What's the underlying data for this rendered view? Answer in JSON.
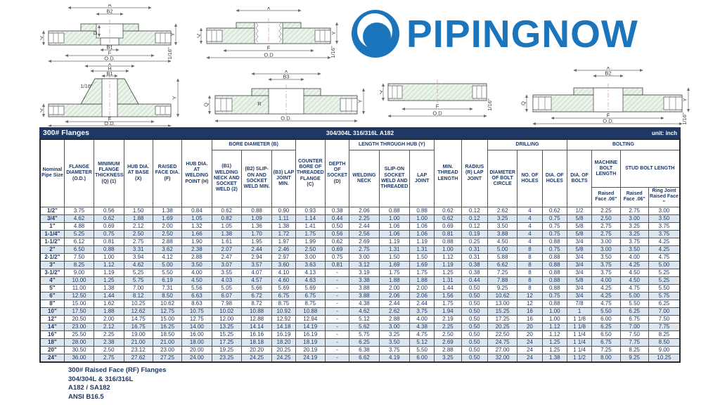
{
  "logo": {
    "text": "PIPINGNOW",
    "color": "#1b75bc"
  },
  "colors": {
    "accent_blue": "#1b75bc",
    "title_bar_bg": "#1f3864",
    "row_stripe": "#dce6f1",
    "text_navy": "#1f3864"
  },
  "drawings": [
    {
      "name": "socket-weld-flange",
      "labels": [
        "A",
        "B2",
        "D",
        "B1",
        "F",
        "O.D.",
        "Q",
        "Y",
        "1/16\""
      ]
    },
    {
      "name": "threaded-flange",
      "labels": [
        "X",
        "F",
        "O.D",
        "Q",
        "Y",
        "1/16\""
      ]
    },
    {
      "name": "welding-neck-flange",
      "labels": [
        "X",
        "H",
        "B1",
        "1/16\"",
        "F",
        "O.D.",
        "Q",
        "Y"
      ]
    },
    {
      "name": "lap-joint-flange",
      "labels": [
        "X",
        "B3",
        "R",
        "O.D.",
        "Q",
        "Y"
      ]
    },
    {
      "name": "blind-flange",
      "labels": [
        "Q",
        "F",
        "O.D",
        "1/16\""
      ]
    },
    {
      "name": "slip-on-flange",
      "labels": [
        "X",
        "B2",
        "F",
        "O.D.",
        "Q",
        "Y",
        "1/16\""
      ]
    }
  ],
  "table": {
    "title": "300# Flanges",
    "subtitle": "304/304L 316/316L A182",
    "unit": "unit: inch",
    "headers": {
      "nps": "Nominal Pipe Size",
      "od": "FLANGE DIAMETER (O.D.)",
      "q": "MINIMUM FLANGE THICKNESS (Q) (1)",
      "x": "HUB DIA. AT BASE (X)",
      "f": "RAISED FACE DIA. (F)",
      "h": "HUB DIA. AT WELDING POINT (H)",
      "bore_group": "BORE DIAMETER (B)",
      "b1": "(B1) WELDING NECK AND SOCKET WELD (2)",
      "b2": "(B2) SLIP-ON AND SOCKET WELD MIN.",
      "b3": "(B3) LAP JOINT MIN.",
      "c": "COUNTER BORE OF THREADED FLANGE (C)",
      "d": "DEPTH OF SOCKET (D)",
      "hub_group": "LENGTH THROUGH HUB (Y)",
      "y_wn": "WELDING NECK",
      "y_so": "SLIP-ON SOCKET WELD AND THREADED",
      "y_lj": "LAP JOINT",
      "min_thread": "MIN. THREAD LENGTH",
      "radius": "RADIUS (R) LAP JOINT",
      "drilling_group": "DRILLING",
      "bolt_circle": "DIAMETER OF BOLT CIRCLE",
      "num_holes": "NO. OF HOLES",
      "dia_holes": "DIA. OF HOLES",
      "bolting_group": "BOLTING",
      "dia_bolts": "DIA. OF BOLTS",
      "machine_bolt": "MACHINE BOLT LENGTH",
      "stud_bolt": "STUD BOLT LENGTH",
      "mb_raised_face": "Raised Face .06\"",
      "sb_raised_face": "Raised Face .06\"",
      "sb_ring_joint": "Ring Joint Raised Face \""
    },
    "rows": [
      [
        "1/2\"",
        "3.75",
        "0.56",
        "1.50",
        "1.38",
        "0.84",
        "0.62",
        "0.88",
        "0.90",
        "0.93",
        "0.38",
        "2.06",
        "0.88",
        "0.88",
        "0.62",
        "0.12",
        "2.62",
        "4",
        "0.62",
        "1/2",
        "2.25",
        "2.75",
        "3.00"
      ],
      [
        "3/4\"",
        "4.62",
        "0.62",
        "1.88",
        "1.69",
        "1.05",
        "0.82",
        "1.09",
        "1.11",
        "1.14",
        "0.44",
        "2.25",
        "1.00",
        "1.00",
        "0.62",
        "0.12",
        "3.25",
        "4",
        "0.75",
        "5/8",
        "2.50",
        "3.00",
        "3.50"
      ],
      [
        "1\"",
        "4.88",
        "0.69",
        "2.12",
        "2.00",
        "1.32",
        "1.05",
        "1.36",
        "1.38",
        "1.41",
        "0.50",
        "2.44",
        "1.06",
        "1.06",
        "0.69",
        "0.12",
        "3.50",
        "4",
        "0.75",
        "5/8",
        "2.75",
        "3.25",
        "3.75"
      ],
      [
        "1-1/4\"",
        "5.25",
        "0.75",
        "2.50",
        "2.50",
        "1.66",
        "1.38",
        "1.70",
        "1.72",
        "1.75",
        "0.56",
        "2.56",
        "1.06",
        "1.06",
        "0.81",
        "0.19",
        "3.88",
        "4",
        "0.75",
        "5/8",
        "2.75",
        "3.25",
        "3.75"
      ],
      [
        "1-1/2\"",
        "6.12",
        "0.81",
        "2.75",
        "2.88",
        "1.90",
        "1.61",
        "1.95",
        "1.97",
        "1.99",
        "0.62",
        "2.69",
        "1.19",
        "1.19",
        "0.88",
        "0.25",
        "4.50",
        "4",
        "0.88",
        "3/4",
        "3.00",
        "3.75",
        "4.25"
      ],
      [
        "2\"",
        "6.50",
        "0.88",
        "3.31",
        "3.62",
        "2.38",
        "2.07",
        "2.44",
        "2.46",
        "2.50",
        "0.69",
        "2.75",
        "1.31",
        "1.31",
        "1.00",
        "0.31",
        "5.00",
        "8",
        "0.75",
        "5/8",
        "3.00",
        "3.50",
        "4.25"
      ],
      [
        "2-1/2\"",
        "7.50",
        "1.00",
        "3.94",
        "4.12",
        "2.88",
        "2.47",
        "2.94",
        "2.97",
        "3.00",
        "0.75",
        "3.00",
        "1.50",
        "1.50",
        "1.12",
        "0.31",
        "5.88",
        "8",
        "0.88",
        "3/4",
        "3.50",
        "4.00",
        "4.75"
      ],
      [
        "3\"",
        "8.25",
        "1.12",
        "4.62",
        "5.00",
        "3.50",
        "3.07",
        "3.57",
        "3.60",
        "3.63",
        "0.81",
        "3.12",
        "1.69",
        "1.69",
        "1.19",
        "0.38",
        "6.62",
        "8",
        "0.88",
        "3/4",
        "3.75",
        "4.25",
        "5.00"
      ],
      [
        "3-1/2\"",
        "9.00",
        "1.19",
        "5.25",
        "5.50",
        "4.00",
        "3.55",
        "4.07",
        "4.10",
        "4.13",
        "-",
        "3.19",
        "1.75",
        "1.75",
        "1.25",
        "0.38",
        "7.25",
        "8",
        "0.88",
        "3/4",
        "3.75",
        "4.50",
        "5.25"
      ],
      [
        "4\"",
        "10.00",
        "1.25",
        "5.75",
        "6.19",
        "4.50",
        "4.03",
        "4.57",
        "4.60",
        "4.63",
        "-",
        "3.38",
        "1.88",
        "1.88",
        "1.31",
        "0.44",
        "7.88",
        "8",
        "0.88",
        "5/8",
        "4.00",
        "4.50",
        "5.25"
      ],
      [
        "5\"",
        "11.00",
        "1.38",
        "7.00",
        "7.31",
        "5.56",
        "5.05",
        "5.66",
        "5.69",
        "5.69",
        "-",
        "3.88",
        "2.00",
        "2.00",
        "1.44",
        "0.50",
        "9.25",
        "8",
        "0.88",
        "3/4",
        "4.25",
        "4.75",
        "5.50"
      ],
      [
        "6\"",
        "12.50",
        "1.44",
        "8.12",
        "8.50",
        "6.63",
        "6.07",
        "6.72",
        "6.75",
        "6.75",
        "-",
        "3.88",
        "2.06",
        "2.06",
        "1.56",
        "0.50",
        "10.62",
        "12",
        "0.75",
        "3/4",
        "4.25",
        "5.00",
        "5.75"
      ],
      [
        "8\"",
        "15.00",
        "1.62",
        "10.25",
        "10.62",
        "8.63",
        "7.98",
        "8.72",
        "8.75",
        "8.75",
        "-",
        "4.38",
        "2.44",
        "2.44",
        "1.75",
        "0.50",
        "13.00",
        "12",
        "0.88",
        "7/8",
        "4.75",
        "5.50",
        "6.25"
      ],
      [
        "10\"",
        "17.50",
        "1.88",
        "12.62",
        "12.75",
        "10.75",
        "10.02",
        "10.88",
        "10.92",
        "10.88",
        "-",
        "4.62",
        "2.62",
        "3.75",
        "1.94",
        "0.50",
        "15.25",
        "16",
        "1.00",
        "1",
        "5.50",
        "6.25",
        "7.00"
      ],
      [
        "12\"",
        "20.50",
        "2.00",
        "14.75",
        "15.00",
        "12.75",
        "12.00",
        "12.88",
        "12.92",
        "12.94",
        "-",
        "5.12",
        "2.88",
        "4.00",
        "2.19",
        "0.50",
        "17.25",
        "16",
        "1.00",
        "1 1/8",
        "6.00",
        "6.75",
        "7.50"
      ],
      [
        "14\"",
        "23.00",
        "2.12",
        "16.75",
        "16.25",
        "14.00",
        "13.25",
        "14.14",
        "14.18",
        "14.19",
        "-",
        "5.62",
        "3.00",
        "4.38",
        "2.25",
        "0.50",
        "20.25",
        "20",
        "1.12",
        "1 1/8",
        "6.25",
        "7.00",
        "7.75"
      ],
      [
        "16\"",
        "25.50",
        "2.25",
        "19.00",
        "18.50",
        "16.00",
        "15.25",
        "16.16",
        "16.19",
        "16.19",
        "-",
        "5.75",
        "3.25",
        "4.75",
        "2.50",
        "0.50",
        "22.50",
        "20",
        "1.12",
        "1 1/4",
        "6.50",
        "7.50",
        "8.25"
      ],
      [
        "18\"",
        "28.00",
        "2.38",
        "21.00",
        "21.00",
        "18.00",
        "17.25",
        "18.18",
        "18.20",
        "18.19",
        "-",
        "6.25",
        "3.50",
        "5.12",
        "2.69",
        "0.50",
        "24.75",
        "24",
        "1.25",
        "1 1/4",
        "6.75",
        "7.75",
        "8.50"
      ],
      [
        "20\"",
        "30.50",
        "2.50",
        "23.12",
        "23.00",
        "20.00",
        "19.25",
        "20.20",
        "20.25",
        "20.19",
        "-",
        "6.38",
        "3.75",
        "5.50",
        "2.88",
        "0.50",
        "27.00",
        "24",
        "1.25",
        "1 1/4",
        "7.25",
        "8.25",
        "9.00"
      ],
      [
        "24\"",
        "36.00",
        "2.75",
        "27.62",
        "27.25",
        "24.00",
        "23.25",
        "24.25",
        "24.25",
        "24.19",
        "-",
        "6.62",
        "4.19",
        "6.00",
        "3.25",
        "0.50",
        "32.00",
        "24",
        "1.38",
        "1 1/2",
        "8.00",
        "9.25",
        "10.25"
      ]
    ]
  },
  "footer": {
    "lines": [
      "300# Raised Face (RF) Flanges",
      "304/304L & 316/316L",
      "A182 / SA182",
      "ANSI B16.5"
    ]
  }
}
